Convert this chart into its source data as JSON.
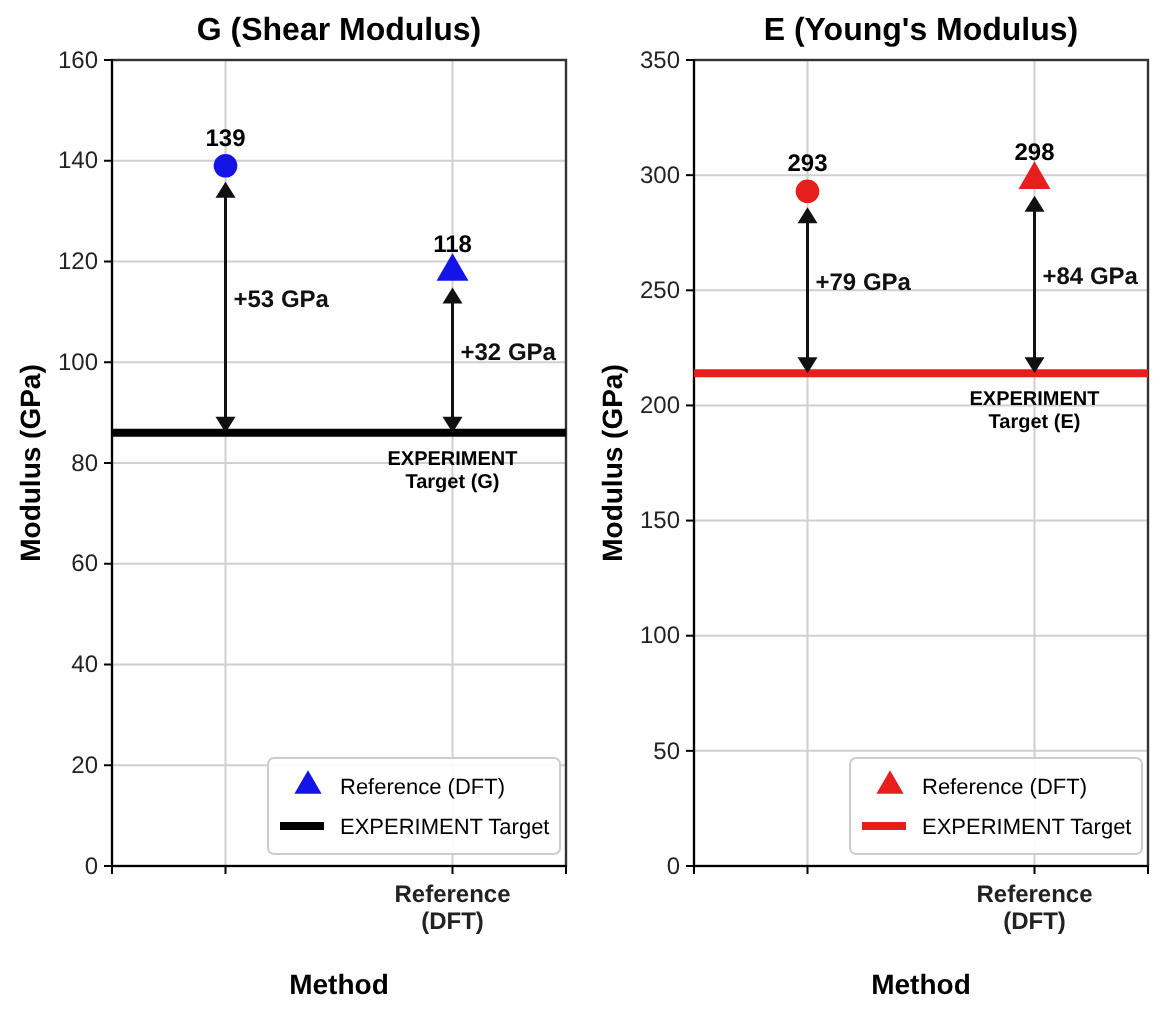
{
  "chart_data": [
    {
      "type": "scatter",
      "title": "G (Shear Modulus)",
      "xlabel": "Method",
      "ylabel": "Modulus (GPa)",
      "categories": [
        null,
        "Reference (DFT)"
      ],
      "series": [
        {
          "color": "#1414e6",
          "marker": "circle",
          "values": [
            139,
            null
          ]
        },
        {
          "name": "Reference (DFT)",
          "color": "#1414e6",
          "marker": "triangle",
          "values": [
            null,
            118
          ]
        }
      ],
      "ylim": [
        0,
        160
      ],
      "yticks": [
        0,
        20,
        40,
        60,
        80,
        100,
        120,
        140,
        160
      ],
      "grid": true,
      "legend": "bottom right",
      "data_labels": true,
      "ref_lines": [
        {
          "axis": "y",
          "value": 86,
          "label": "EXPERIMENT Target",
          "color": "#000000"
        }
      ],
      "annotations": [
        "+53 GPa",
        "+32 GPa",
        {
          "text": "EXPERIMENT Target (G)",
          "x": "Reference (DFT)",
          "y": 86
        }
      ]
    },
    {
      "type": "scatter",
      "title": "E (Young's Modulus)",
      "xlabel": "Method",
      "ylabel": "Modulus (GPa)",
      "categories": [
        null,
        "Reference (DFT)"
      ],
      "series": [
        {
          "color": "#e61e1e",
          "marker": "circle",
          "values": [
            293,
            null
          ]
        },
        {
          "name": "Reference (DFT)",
          "color": "#e61e1e",
          "marker": "triangle",
          "values": [
            null,
            298
          ]
        }
      ],
      "ylim": [
        0,
        350
      ],
      "yticks": [
        0,
        50,
        100,
        150,
        200,
        250,
        300,
        350
      ],
      "grid": true,
      "legend": "bottom right",
      "data_labels": true,
      "ref_lines": [
        {
          "axis": "y",
          "value": 214,
          "label": "EXPERIMENT Target",
          "color": "#e61e1e"
        }
      ],
      "annotations": [
        "+79 GPa",
        "+84 GPa",
        {
          "text": "EXPERIMENT Target (E)",
          "x": "Reference (DFT)",
          "y": 214
        }
      ]
    }
  ]
}
